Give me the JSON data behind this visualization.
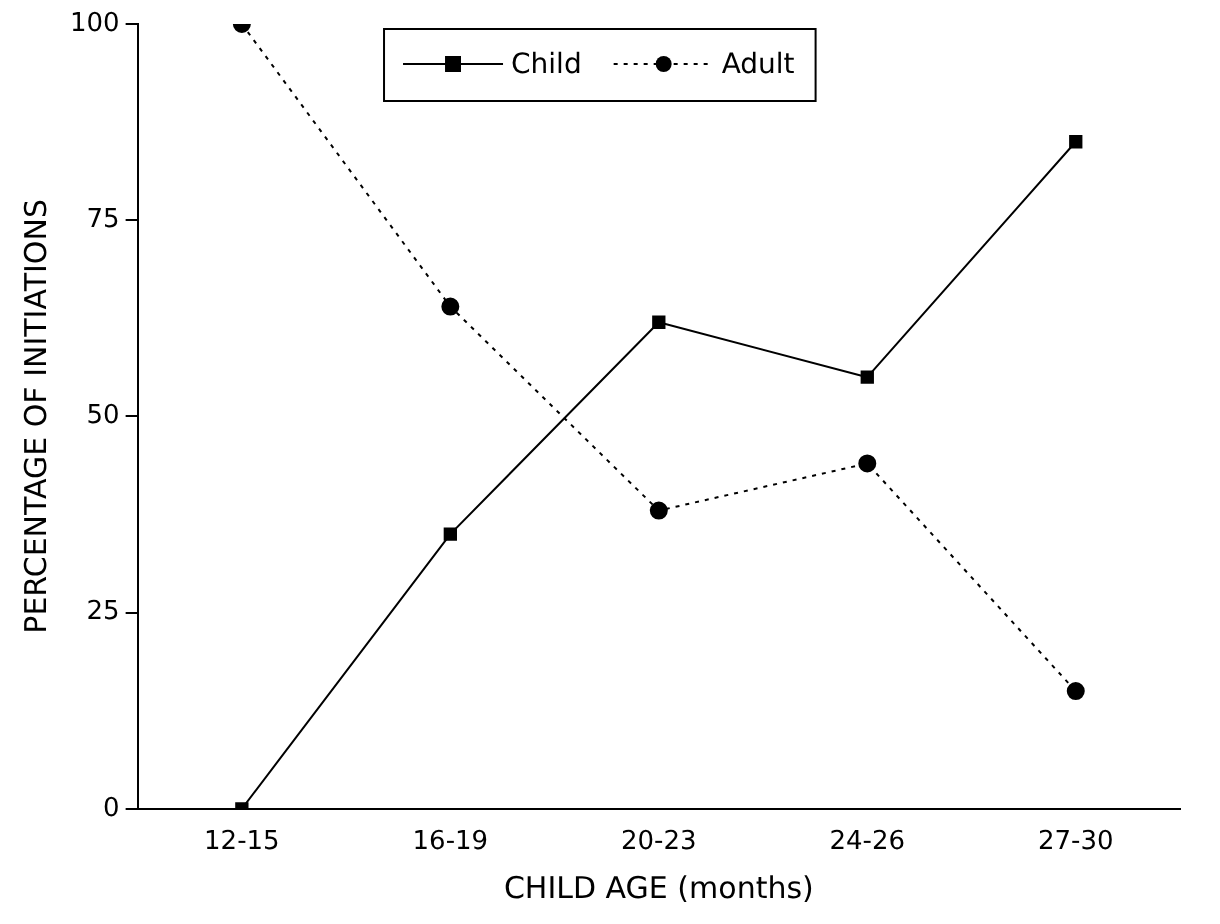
{
  "chart_data": {
    "type": "line",
    "xlabel": "CHILD AGE (months)",
    "ylabel": "PERCENTAGE OF INITIATIONS",
    "categories": [
      "12-15",
      "16-19",
      "20-23",
      "24-26",
      "27-30"
    ],
    "series": [
      {
        "name": "Child",
        "color": "#000000",
        "values": [
          0,
          35,
          62,
          55,
          85
        ],
        "marker": "square",
        "line_style": "solid"
      },
      {
        "name": "Adult",
        "color": "#000000",
        "values": [
          100,
          64,
          38,
          44,
          15
        ],
        "marker": "circle",
        "line_style": "dotted"
      }
    ],
    "ylim": [
      0,
      100
    ],
    "yticks": [
      0,
      25,
      50,
      75,
      100
    ],
    "grid": false,
    "legend": "top"
  }
}
